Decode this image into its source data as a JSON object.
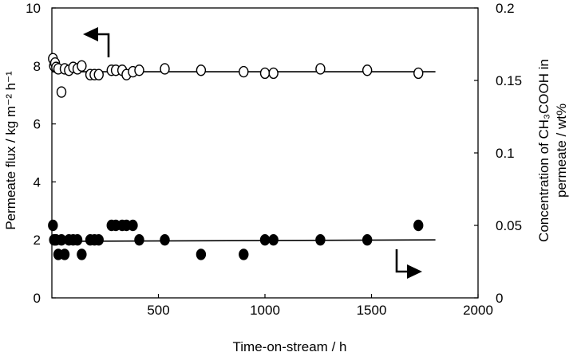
{
  "chart_data": {
    "type": "scatter",
    "title": "",
    "xlabel": "Time-on-stream / h",
    "ylabel_left": "Permeate flux / kg m⁻² h⁻¹",
    "ylabel_right_line1": "Concentration of CH₃COOH in",
    "ylabel_right_line2": "permeate / wt%",
    "xlim": [
      0,
      2000
    ],
    "ylim_left": [
      0,
      10
    ],
    "ylim_right": [
      0,
      0.2
    ],
    "x_ticks": [
      "500",
      "1000",
      "1500",
      "2000"
    ],
    "y_left_ticks": [
      "0",
      "2",
      "4",
      "6",
      "8",
      "10"
    ],
    "y_right_ticks": [
      "0",
      "0.05",
      "0.1",
      "0.15",
      "0.2"
    ],
    "grid": false,
    "series": [
      {
        "axis": "left",
        "marker": "open-circle",
        "x": [
          5,
          10,
          15,
          20,
          30,
          45,
          60,
          80,
          100,
          120,
          140,
          180,
          200,
          220,
          280,
          300,
          330,
          350,
          380,
          410,
          530,
          700,
          900,
          1000,
          1040,
          1260,
          1480,
          1720
        ],
        "y": [
          8.25,
          8.0,
          8.1,
          7.95,
          7.9,
          7.1,
          7.9,
          7.85,
          7.95,
          7.9,
          8.0,
          7.7,
          7.7,
          7.7,
          7.85,
          7.85,
          7.85,
          7.7,
          7.8,
          7.85,
          7.9,
          7.85,
          7.8,
          7.75,
          7.75,
          7.9,
          7.85,
          7.75
        ]
      },
      {
        "axis": "right",
        "marker": "filled-circle",
        "x": [
          5,
          10,
          15,
          20,
          30,
          45,
          60,
          80,
          100,
          120,
          140,
          180,
          200,
          220,
          280,
          300,
          330,
          350,
          380,
          410,
          530,
          700,
          900,
          1000,
          1040,
          1260,
          1480,
          1720
        ],
        "y": [
          0.05,
          0.04,
          0.04,
          0.04,
          0.03,
          0.04,
          0.03,
          0.04,
          0.04,
          0.04,
          0.03,
          0.04,
          0.04,
          0.04,
          0.05,
          0.05,
          0.05,
          0.05,
          0.05,
          0.04,
          0.04,
          0.03,
          0.03,
          0.04,
          0.04,
          0.04,
          0.04,
          0.05
        ]
      }
    ],
    "trend_lines": [
      {
        "axis": "left",
        "x": [
          0,
          1800
        ],
        "y": [
          7.8,
          7.8
        ]
      },
      {
        "axis": "right",
        "x": [
          0,
          1800
        ],
        "y": [
          0.039,
          0.04
        ]
      }
    ],
    "annotations": [
      {
        "type": "arrow",
        "points_to": "left-axis",
        "near_series": "open-circle"
      },
      {
        "type": "arrow",
        "points_to": "right-axis",
        "near_series": "filled-circle"
      }
    ]
  }
}
